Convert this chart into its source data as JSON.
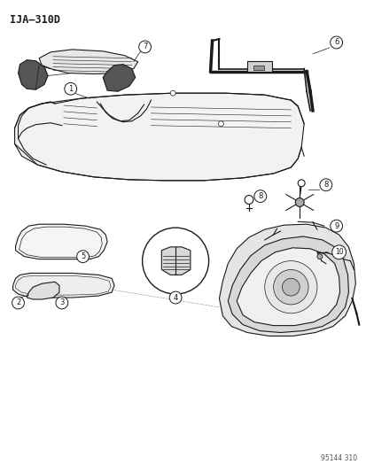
{
  "title": "IJA–310D",
  "watermark": "95144 310",
  "bg": "#ffffff",
  "lc": "#1a1a1a",
  "fig_w": 4.14,
  "fig_h": 5.33,
  "dpi": 100
}
